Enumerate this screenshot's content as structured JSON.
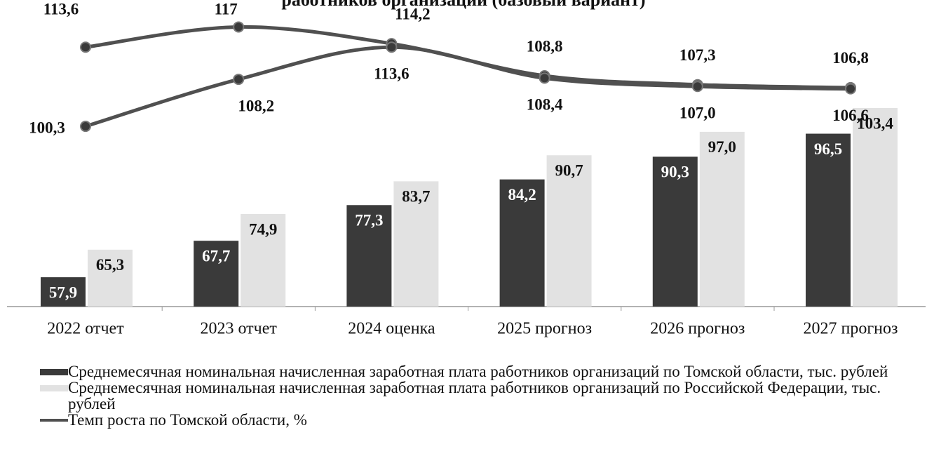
{
  "chart_data": {
    "type": "bar",
    "title": "работников организаций (базовый вариант)",
    "categories": [
      "2022 отчет",
      "2023 отчет",
      "2024 оценка",
      "2025 прогноз",
      "2026 прогноз",
      "2027 прогноз"
    ],
    "ylim": [
      50,
      130
    ],
    "y2lim": [
      70,
      120
    ],
    "series": [
      {
        "name": "Среднемесячная номинальная начисленная заработная плата работников организаций по Томской области, тыс. рублей",
        "color": "#3a3a3a",
        "values": [
          57.9,
          67.7,
          77.3,
          84.2,
          90.3,
          96.5
        ],
        "value_labels": [
          "57,9",
          "67,7",
          "77,3",
          "84,2",
          "90,3",
          "96,5"
        ]
      },
      {
        "name": "Среднемесячная номинальная начисленная заработная плата работников организаций по Российской Федерации, тыс. рублей",
        "color": "#e2e2e2",
        "values": [
          65.3,
          74.9,
          83.7,
          90.7,
          97.0,
          103.4
        ],
        "value_labels": [
          "65,3",
          "74,9",
          "83,7",
          "90,7",
          "97,0",
          "103,4"
        ]
      },
      {
        "name": "Темп роста по Томской области, %",
        "type": "line",
        "axis": "y2",
        "color": "#505050",
        "values": [
          113.6,
          117,
          114.2,
          108.8,
          107.3,
          106.8
        ],
        "value_labels": [
          "113,6",
          "117",
          "114,2",
          "108,8",
          "107,3",
          "106,8"
        ]
      },
      {
        "type": "line",
        "axis": "y2",
        "color": "#505050",
        "values": [
          100.3,
          108.2,
          113.6,
          108.4,
          107.0,
          106.6
        ],
        "value_labels": [
          "100,3",
          "108,2",
          "113,6",
          "108,4",
          "107,0",
          "106,6"
        ]
      }
    ]
  }
}
